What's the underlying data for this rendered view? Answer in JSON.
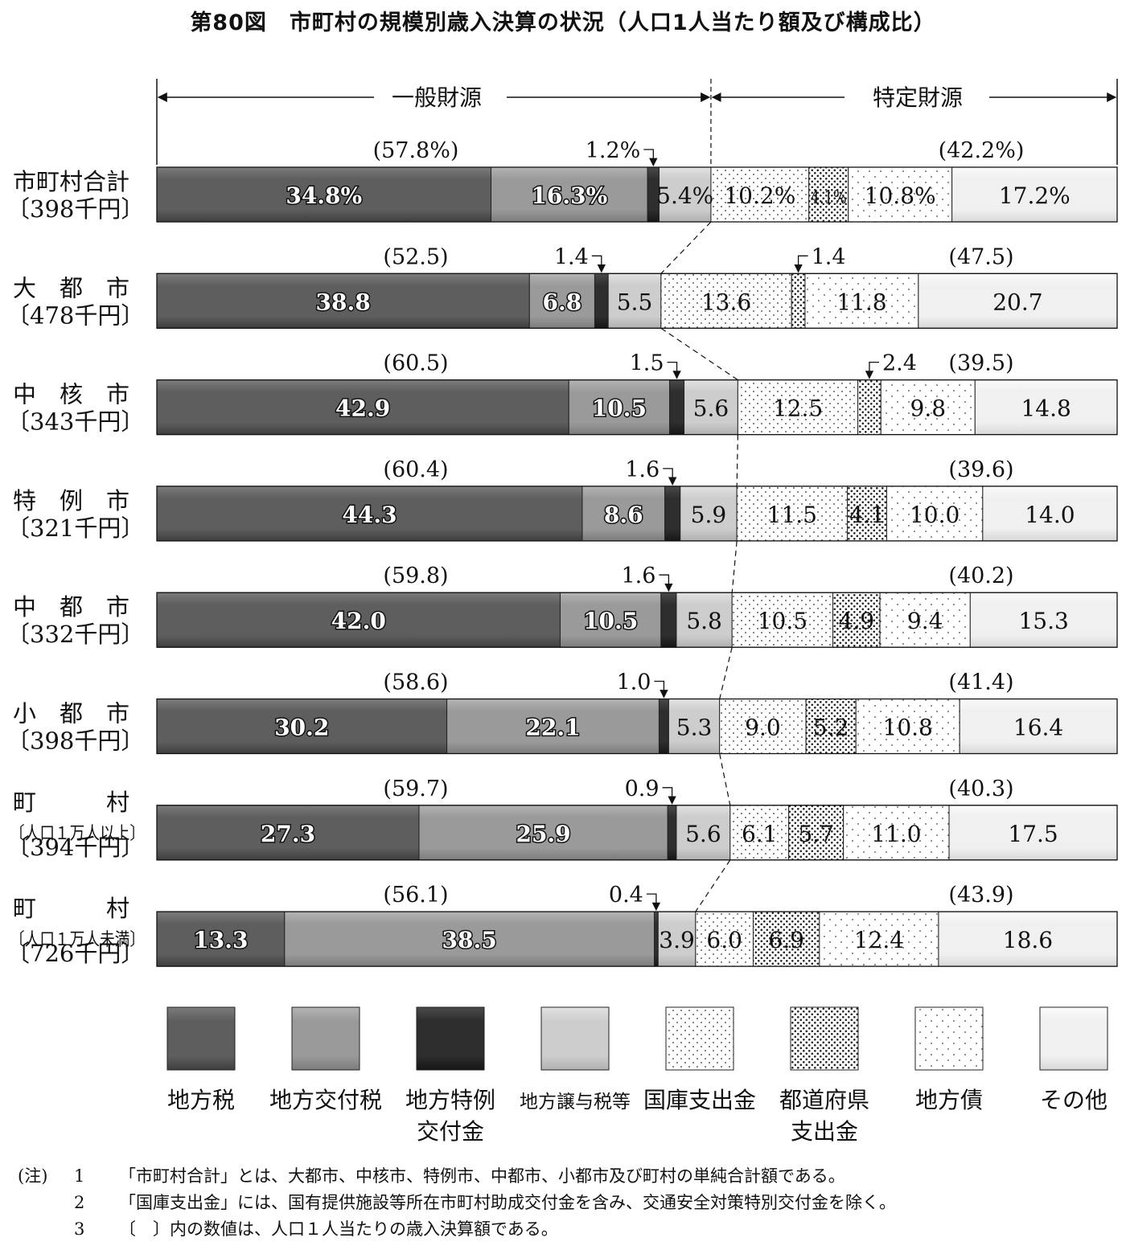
{
  "figure_title": "第80図　市町村の規模別歳入決算の状況（人口1人当たり額及び構成比）",
  "general_label": "一般財源",
  "specific_label": "特定財源",
  "chart_data": {
    "type": "bar",
    "orientation": "horizontal-stacked-percent",
    "xlim": [
      0,
      100
    ],
    "series": [
      {
        "name": "地方税",
        "fill": "#5e5e5e",
        "group": "一般財源"
      },
      {
        "name": "地方交付税",
        "fill": "#9a9a9a",
        "group": "一般財源"
      },
      {
        "name": "地方特例\n交付金",
        "fill": "#2e2e2e",
        "group": "一般財源"
      },
      {
        "name": "地方譲与税等",
        "fill": "#cdcdcd",
        "group": "一般財源"
      },
      {
        "name": "国庫支出金",
        "fill": "dots-sparse",
        "group": "特定財源"
      },
      {
        "name": "都道府県\n支出金",
        "fill": "dots-dense",
        "group": "特定財源"
      },
      {
        "name": "地方債",
        "fill": "dots-light",
        "group": "特定財源"
      },
      {
        "name": "その他",
        "fill": "#f0f0f0",
        "group": "特定財源"
      }
    ],
    "categories": [
      {
        "name_lines": [
          "市町村合計"
        ],
        "amount": "〔398千円〕",
        "values": [
          34.8,
          16.3,
          1.2,
          5.4,
          10.2,
          4.1,
          10.8,
          17.2
        ],
        "value_labels": [
          "34.8%",
          "16.3%",
          "",
          "5.4%",
          "10.2%",
          "4.1%",
          "10.8%",
          "17.2%"
        ],
        "callouts": [
          {
            "series": 2,
            "text": "1.2%"
          }
        ],
        "general_total": "(57.8%)",
        "specific_total": "(42.2%)"
      },
      {
        "name_lines": [
          "大　都　市"
        ],
        "amount": "〔478千円〕",
        "values": [
          38.8,
          6.8,
          1.4,
          5.5,
          13.6,
          1.4,
          11.8,
          20.7
        ],
        "value_labels": [
          "38.8",
          "6.8",
          "",
          "5.5",
          "13.6",
          "",
          "11.8",
          "20.7"
        ],
        "callouts": [
          {
            "series": 2,
            "text": "1.4"
          },
          {
            "series": 5,
            "text": "1.4"
          }
        ],
        "general_total": "(52.5)",
        "specific_total": "(47.5)"
      },
      {
        "name_lines": [
          "中　核　市"
        ],
        "amount": "〔343千円〕",
        "values": [
          42.9,
          10.5,
          1.5,
          5.6,
          12.5,
          2.4,
          9.8,
          14.8
        ],
        "value_labels": [
          "42.9",
          "10.5",
          "",
          "5.6",
          "12.5",
          "",
          "9.8",
          "14.8"
        ],
        "callouts": [
          {
            "series": 2,
            "text": "1.5"
          },
          {
            "series": 5,
            "text": "2.4"
          }
        ],
        "general_total": "(60.5)",
        "specific_total": "(39.5)"
      },
      {
        "name_lines": [
          "特　例　市"
        ],
        "amount": "〔321千円〕",
        "values": [
          44.3,
          8.6,
          1.6,
          5.9,
          11.5,
          4.1,
          10.0,
          14.0
        ],
        "value_labels": [
          "44.3",
          "8.6",
          "",
          "5.9",
          "11.5",
          "4.1",
          "10.0",
          "14.0"
        ],
        "callouts": [
          {
            "series": 2,
            "text": "1.6"
          }
        ],
        "general_total": "(60.4)",
        "specific_total": "(39.6)"
      },
      {
        "name_lines": [
          "中　都　市"
        ],
        "amount": "〔332千円〕",
        "values": [
          42.0,
          10.5,
          1.6,
          5.8,
          10.5,
          4.9,
          9.4,
          15.3
        ],
        "value_labels": [
          "42.0",
          "10.5",
          "",
          "5.8",
          "10.5",
          "4.9",
          "9.4",
          "15.3"
        ],
        "callouts": [
          {
            "series": 2,
            "text": "1.6"
          }
        ],
        "general_total": "(59.8)",
        "specific_total": "(40.2)"
      },
      {
        "name_lines": [
          "小　都　市"
        ],
        "amount": "〔398千円〕",
        "values": [
          30.2,
          22.1,
          1.0,
          5.3,
          9.0,
          5.2,
          10.8,
          16.4
        ],
        "value_labels": [
          "30.2",
          "22.1",
          "",
          "5.3",
          "9.0",
          "5.2",
          "10.8",
          "16.4"
        ],
        "callouts": [
          {
            "series": 2,
            "text": "1.0"
          }
        ],
        "general_total": "(58.6)",
        "specific_total": "(41.4)"
      },
      {
        "name_lines": [
          "町　　　村",
          "〔人口１万人以上〕"
        ],
        "amount": "〔394千円〕",
        "values": [
          27.3,
          25.9,
          0.9,
          5.6,
          6.1,
          5.7,
          11.0,
          17.5
        ],
        "value_labels": [
          "27.3",
          "25.9",
          "",
          "5.6",
          "6.1",
          "5.7",
          "11.0",
          "17.5"
        ],
        "callouts": [
          {
            "series": 2,
            "text": "0.9"
          }
        ],
        "general_total": "(59.7)",
        "specific_total": "(40.3)"
      },
      {
        "name_lines": [
          "町　　　村",
          "〔人口１万人未満〕"
        ],
        "amount": "〔726千円〕",
        "values": [
          13.3,
          38.5,
          0.4,
          3.9,
          6.0,
          6.9,
          12.4,
          18.6
        ],
        "value_labels": [
          "13.3",
          "38.5",
          "",
          "3.9",
          "6.0",
          "6.9",
          "12.4",
          "18.6"
        ],
        "callouts": [
          {
            "series": 2,
            "text": "0.4"
          }
        ],
        "general_total": "(56.1)",
        "specific_total": "(43.9)"
      }
    ]
  },
  "notes": {
    "head": "(注)",
    "items": [
      {
        "num": "1",
        "text": "「市町村合計」とは、大都市、中核市、特例市、中都市、小都市及び町村の単純合計額である。"
      },
      {
        "num": "2",
        "text": "「国庫支出金」には、国有提供施設等所在市町村助成交付金を含み、交通安全対策特別交付金を除く。"
      },
      {
        "num": "3",
        "text": "〔　〕内の数値は、人口１人当たりの歳入決算額である。"
      }
    ]
  }
}
